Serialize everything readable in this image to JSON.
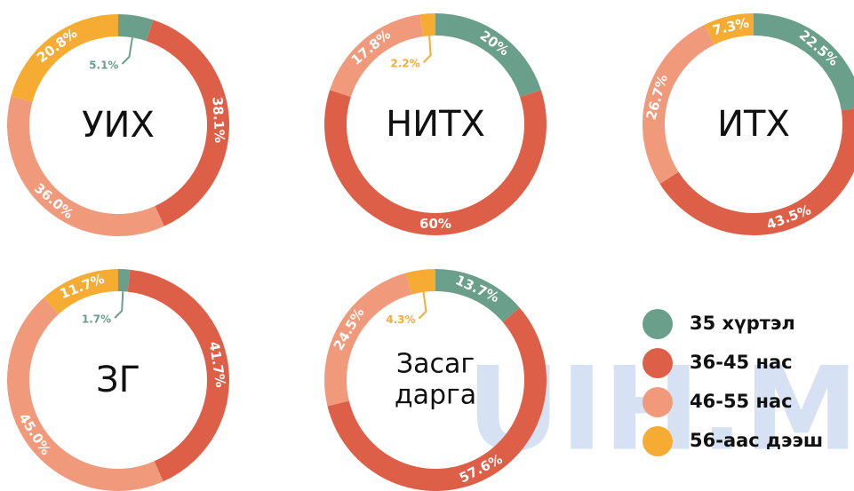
{
  "legend": {
    "categories": [
      "35 хүртэл",
      "36-45 нас",
      "46-55 нас",
      "56-аас дээш"
    ],
    "colors": [
      "#6aa08b",
      "#dd5f48",
      "#f19a7b",
      "#f6ac33"
    ]
  },
  "watermark": "UIH.MN",
  "chart_data": [
    {
      "type": "donut",
      "title": "УИХ",
      "values": [
        5.1,
        38.1,
        36.0,
        20.8
      ],
      "value_labels": [
        "5.1%",
        "38.1%",
        "36.0%",
        "20.8%"
      ]
    },
    {
      "type": "donut",
      "title": "НИТХ",
      "values": [
        20,
        60,
        17.8,
        2.2
      ],
      "value_labels": [
        "20%",
        "60%",
        "17.8%",
        "2.2%"
      ]
    },
    {
      "type": "donut",
      "title": "ИТХ",
      "values": [
        22.5,
        43.5,
        26.7,
        7.3
      ],
      "value_labels": [
        "22.5%",
        "43.5%",
        "26.7%",
        "7.3%"
      ]
    },
    {
      "type": "donut",
      "title": "ЗГ",
      "values": [
        1.7,
        41.7,
        45.0,
        11.7
      ],
      "value_labels": [
        "1.7%",
        "41.7%",
        "45.0%",
        "11.7%"
      ]
    },
    {
      "type": "donut",
      "title": "Засаг дарга",
      "values": [
        13.7,
        57.6,
        24.5,
        4.3
      ],
      "value_labels": [
        "13.7%",
        "57.6%",
        "24.5%",
        "4.3%"
      ]
    }
  ]
}
